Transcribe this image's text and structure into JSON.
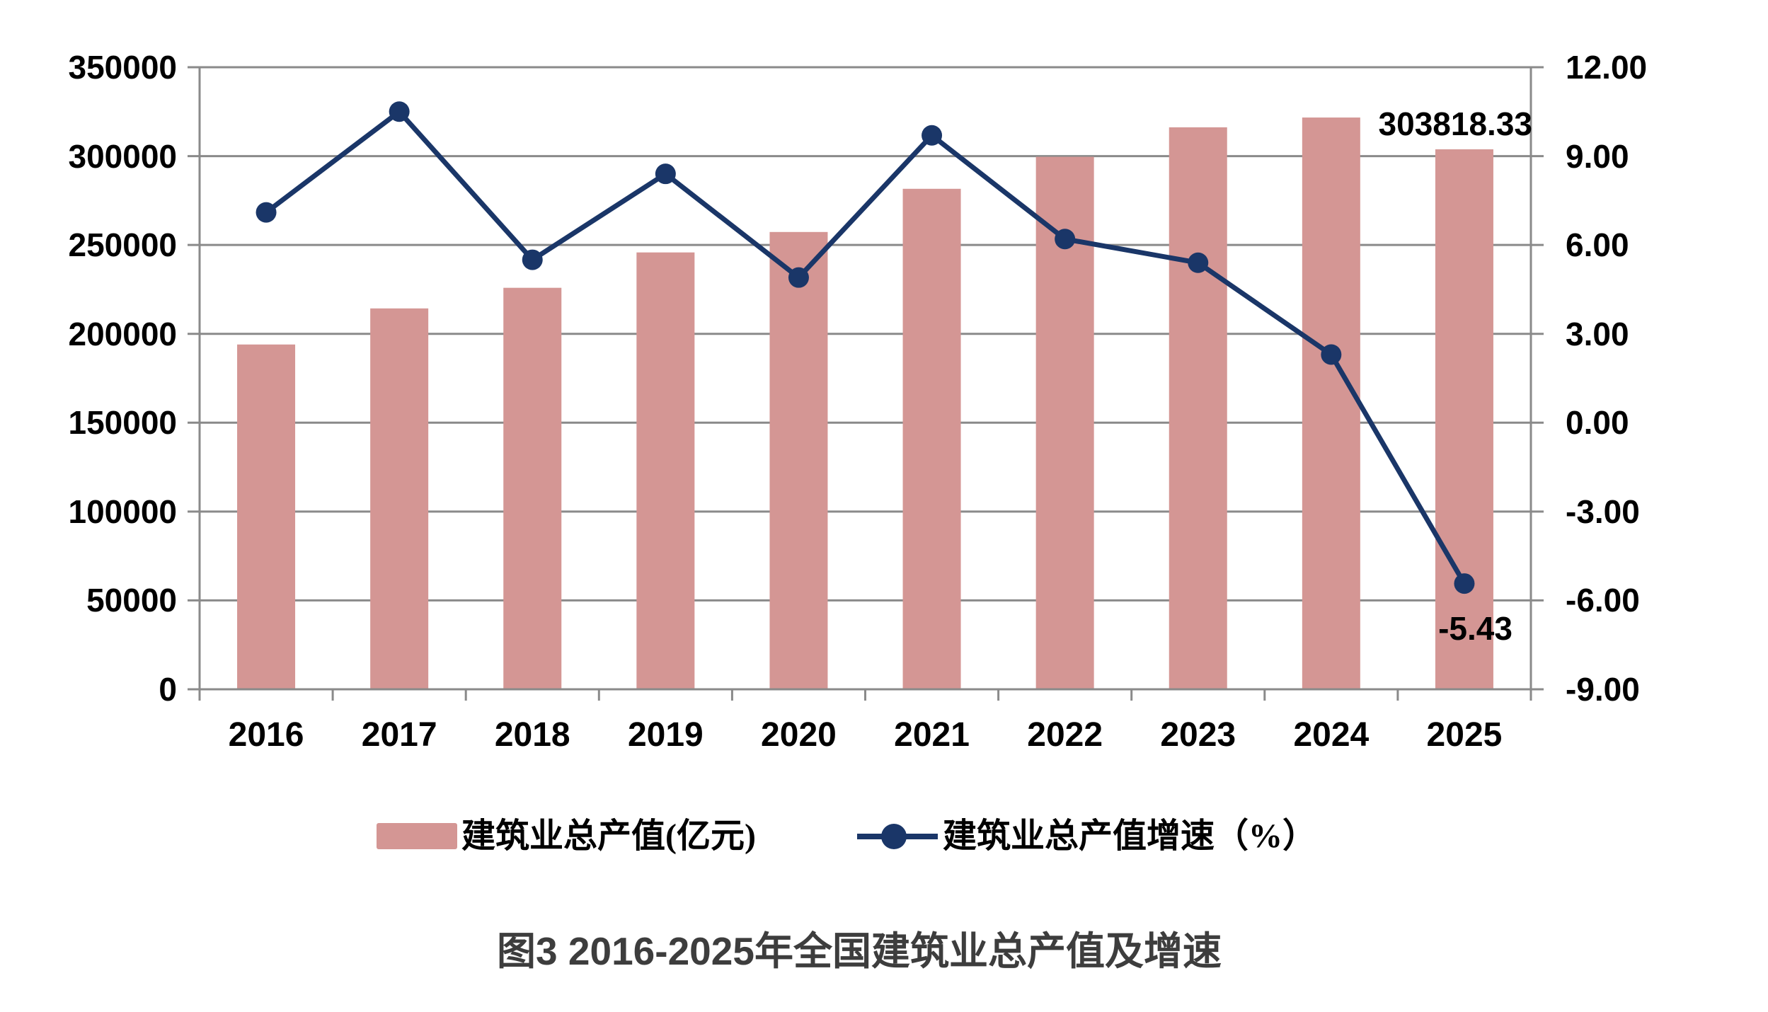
{
  "chart_data": {
    "type": "bar",
    "subtype": "combo-bar-line-dual-axis",
    "categories": [
      "2016",
      "2017",
      "2018",
      "2019",
      "2020",
      "2021",
      "2022",
      "2023",
      "2024",
      "2025"
    ],
    "series": [
      {
        "name": "建筑业总产值(亿元)",
        "type": "bar",
        "axis": "left",
        "values": [
          194000,
          214300,
          225900,
          245800,
          257300,
          281600,
          299600,
          316200,
          321700,
          303818.33
        ]
      },
      {
        "name": "建筑业总产值增速（%）",
        "type": "line",
        "axis": "right",
        "values": [
          7.1,
          10.5,
          5.5,
          8.4,
          4.9,
          9.7,
          6.2,
          5.4,
          2.3,
          -5.43
        ]
      }
    ],
    "left_axis": {
      "min": 0,
      "max": 350000,
      "step": 50000,
      "tick_labels": [
        "350000",
        "300000",
        "250000",
        "200000",
        "150000",
        "100000",
        "50000",
        "0"
      ]
    },
    "right_axis": {
      "min": -9,
      "max": 12,
      "step": 3,
      "tick_labels": [
        "12.00",
        "9.00",
        "6.00",
        "3.00",
        "0.00",
        "-3.00",
        "-6.00",
        "-9.00"
      ]
    },
    "annotations": [
      {
        "text": "303818.33",
        "series": "建筑业总产值(亿元)",
        "category": "2025"
      },
      {
        "text": "-5.43",
        "series": "建筑业总产值增速（%）",
        "category": "2025"
      }
    ],
    "grid": true,
    "legend_position": "bottom",
    "title": "图3  2016-2025年全国建筑业总产值及增速"
  },
  "labels": {
    "bar_value_label": "303818.33",
    "growth_value_label": "-5.43"
  },
  "legend": {
    "bar": "建筑业总产值(亿元)",
    "line": "建筑业总产值增速（%）"
  },
  "caption": "图3  2016-2025年全国建筑业总产值及增速",
  "colors": {
    "bar": "#d49694",
    "line": "#1a3668",
    "gridline": "#8a8a8a",
    "axis_text": "#000000",
    "caption_text": "#3d3d3d"
  }
}
